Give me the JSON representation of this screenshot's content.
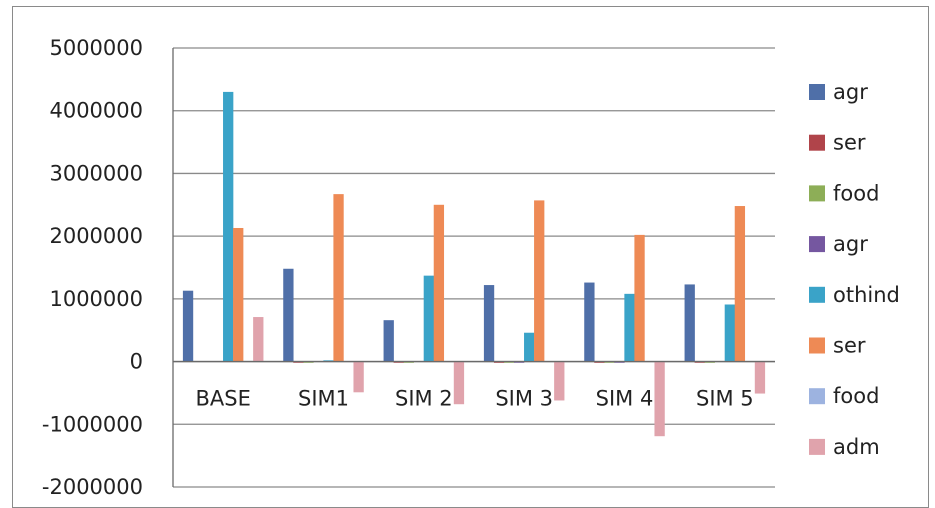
{
  "chart_data": {
    "type": "bar",
    "categories": [
      "BASE",
      "SIM1",
      "SIM 2",
      "SIM 3",
      "SIM 4",
      "SIM 5"
    ],
    "ylim": [
      -2000000,
      5000000
    ],
    "yticks": [
      5000000,
      4000000,
      3000000,
      2000000,
      1000000,
      0,
      -1000000,
      -2000000
    ],
    "ytick_labels": [
      "5000000",
      "4000000",
      "3000000",
      "2000000",
      "1000000",
      "0",
      "-1000000",
      "-2000000"
    ],
    "grid": true,
    "legend_position": "right",
    "series": [
      {
        "name": "agr",
        "color": "#4F6FA8",
        "values": [
          1130000,
          1480000,
          660000,
          1220000,
          1260000,
          1230000
        ]
      },
      {
        "name": "ser",
        "color": "#B0444A",
        "values": [
          0,
          -15000,
          -15000,
          -20000,
          -20000,
          -15000
        ]
      },
      {
        "name": "food",
        "color": "#8DAE57",
        "values": [
          0,
          -8000,
          -8000,
          -8000,
          -10000,
          -8000
        ]
      },
      {
        "name": "agr",
        "color": "#7557A0",
        "values": [
          0,
          0,
          0,
          -10000,
          -10000,
          0
        ]
      },
      {
        "name": "othind",
        "color": "#3AA3C8",
        "values": [
          4300000,
          20000,
          1370000,
          460000,
          1080000,
          910000
        ]
      },
      {
        "name": "ser",
        "color": "#EE8A55",
        "values": [
          2130000,
          2670000,
          2500000,
          2570000,
          2020000,
          2480000
        ]
      },
      {
        "name": "food",
        "color": "#9DB3E0",
        "values": [
          0,
          0,
          0,
          0,
          0,
          0
        ]
      },
      {
        "name": "adm",
        "color": "#E0A3AC",
        "values": [
          710000,
          -490000,
          -680000,
          -620000,
          -1190000,
          -510000
        ]
      }
    ]
  }
}
